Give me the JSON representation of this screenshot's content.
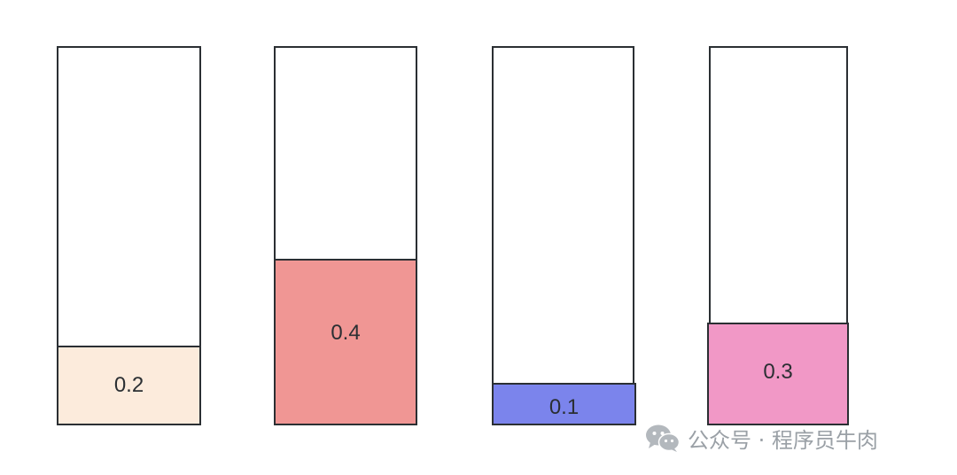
{
  "bins": [
    {
      "label": "0.2",
      "value": 0.2,
      "color": "#fcebdc"
    },
    {
      "label": "0.4",
      "value": 0.4,
      "color": "#f09694"
    },
    {
      "label": "0.1",
      "value": 0.1,
      "color": "#7b84ec"
    },
    {
      "label": "0.3",
      "value": 0.3,
      "color": "#f198c6"
    }
  ],
  "watermark": {
    "text": "公众号 · 程序员牛肉",
    "icon": "wechat-icon"
  }
}
